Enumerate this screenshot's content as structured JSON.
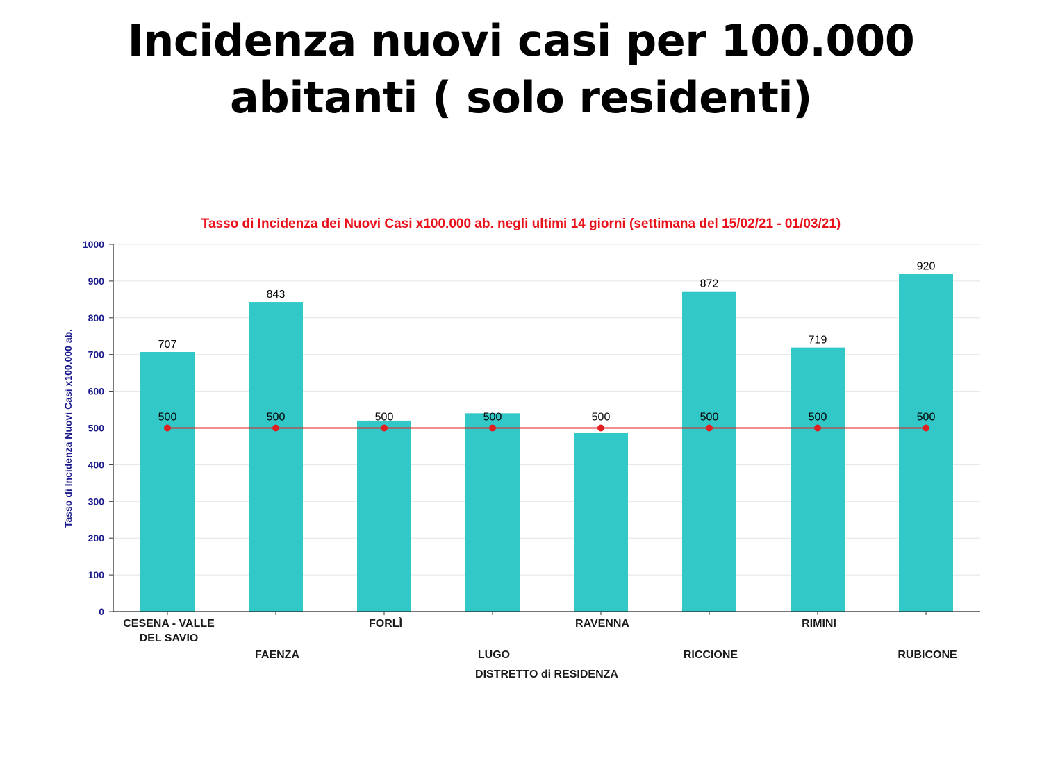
{
  "slide": {
    "title_line1": "Incidenza nuovi casi per 100.000",
    "title_line2": "abitanti ( solo residenti)"
  },
  "chart_data": {
    "type": "bar",
    "title": "Tasso di Incidenza dei Nuovi Casi x100.000 ab. negli ultimi 14 giorni (settimana del 15/02/21 - 01/03/21)",
    "xlabel": "DISTRETTO di RESIDENZA",
    "ylabel": "Tasso di Incidenza Nuovi Casi x100.000 ab.",
    "ylim": [
      0,
      1000
    ],
    "yticks": [
      0,
      100,
      200,
      300,
      400,
      500,
      600,
      700,
      800,
      900,
      1000
    ],
    "categories": [
      [
        "CESENA - VALLE",
        "DEL SAVIO"
      ],
      [
        "FAENZA"
      ],
      [
        "FORLÌ"
      ],
      [
        "LUGO"
      ],
      [
        "RAVENNA"
      ],
      [
        "RICCIONE"
      ],
      [
        "RIMINI"
      ],
      [
        "RUBICONE"
      ]
    ],
    "series": [
      {
        "kind": "bar",
        "values": [
          707,
          843,
          520,
          540,
          487,
          872,
          719,
          920
        ],
        "labels": [
          "707",
          "843",
          null,
          null,
          null,
          "872",
          "719",
          "920"
        ],
        "color": "#33c8c8"
      },
      {
        "kind": "line",
        "values": [
          500,
          500,
          500,
          500,
          500,
          500,
          500,
          500
        ],
        "labels": [
          "500",
          "500",
          "500",
          "500",
          "500",
          "500",
          "500",
          "500"
        ],
        "color": "#e02020"
      }
    ],
    "grid": true,
    "legend": "none"
  }
}
